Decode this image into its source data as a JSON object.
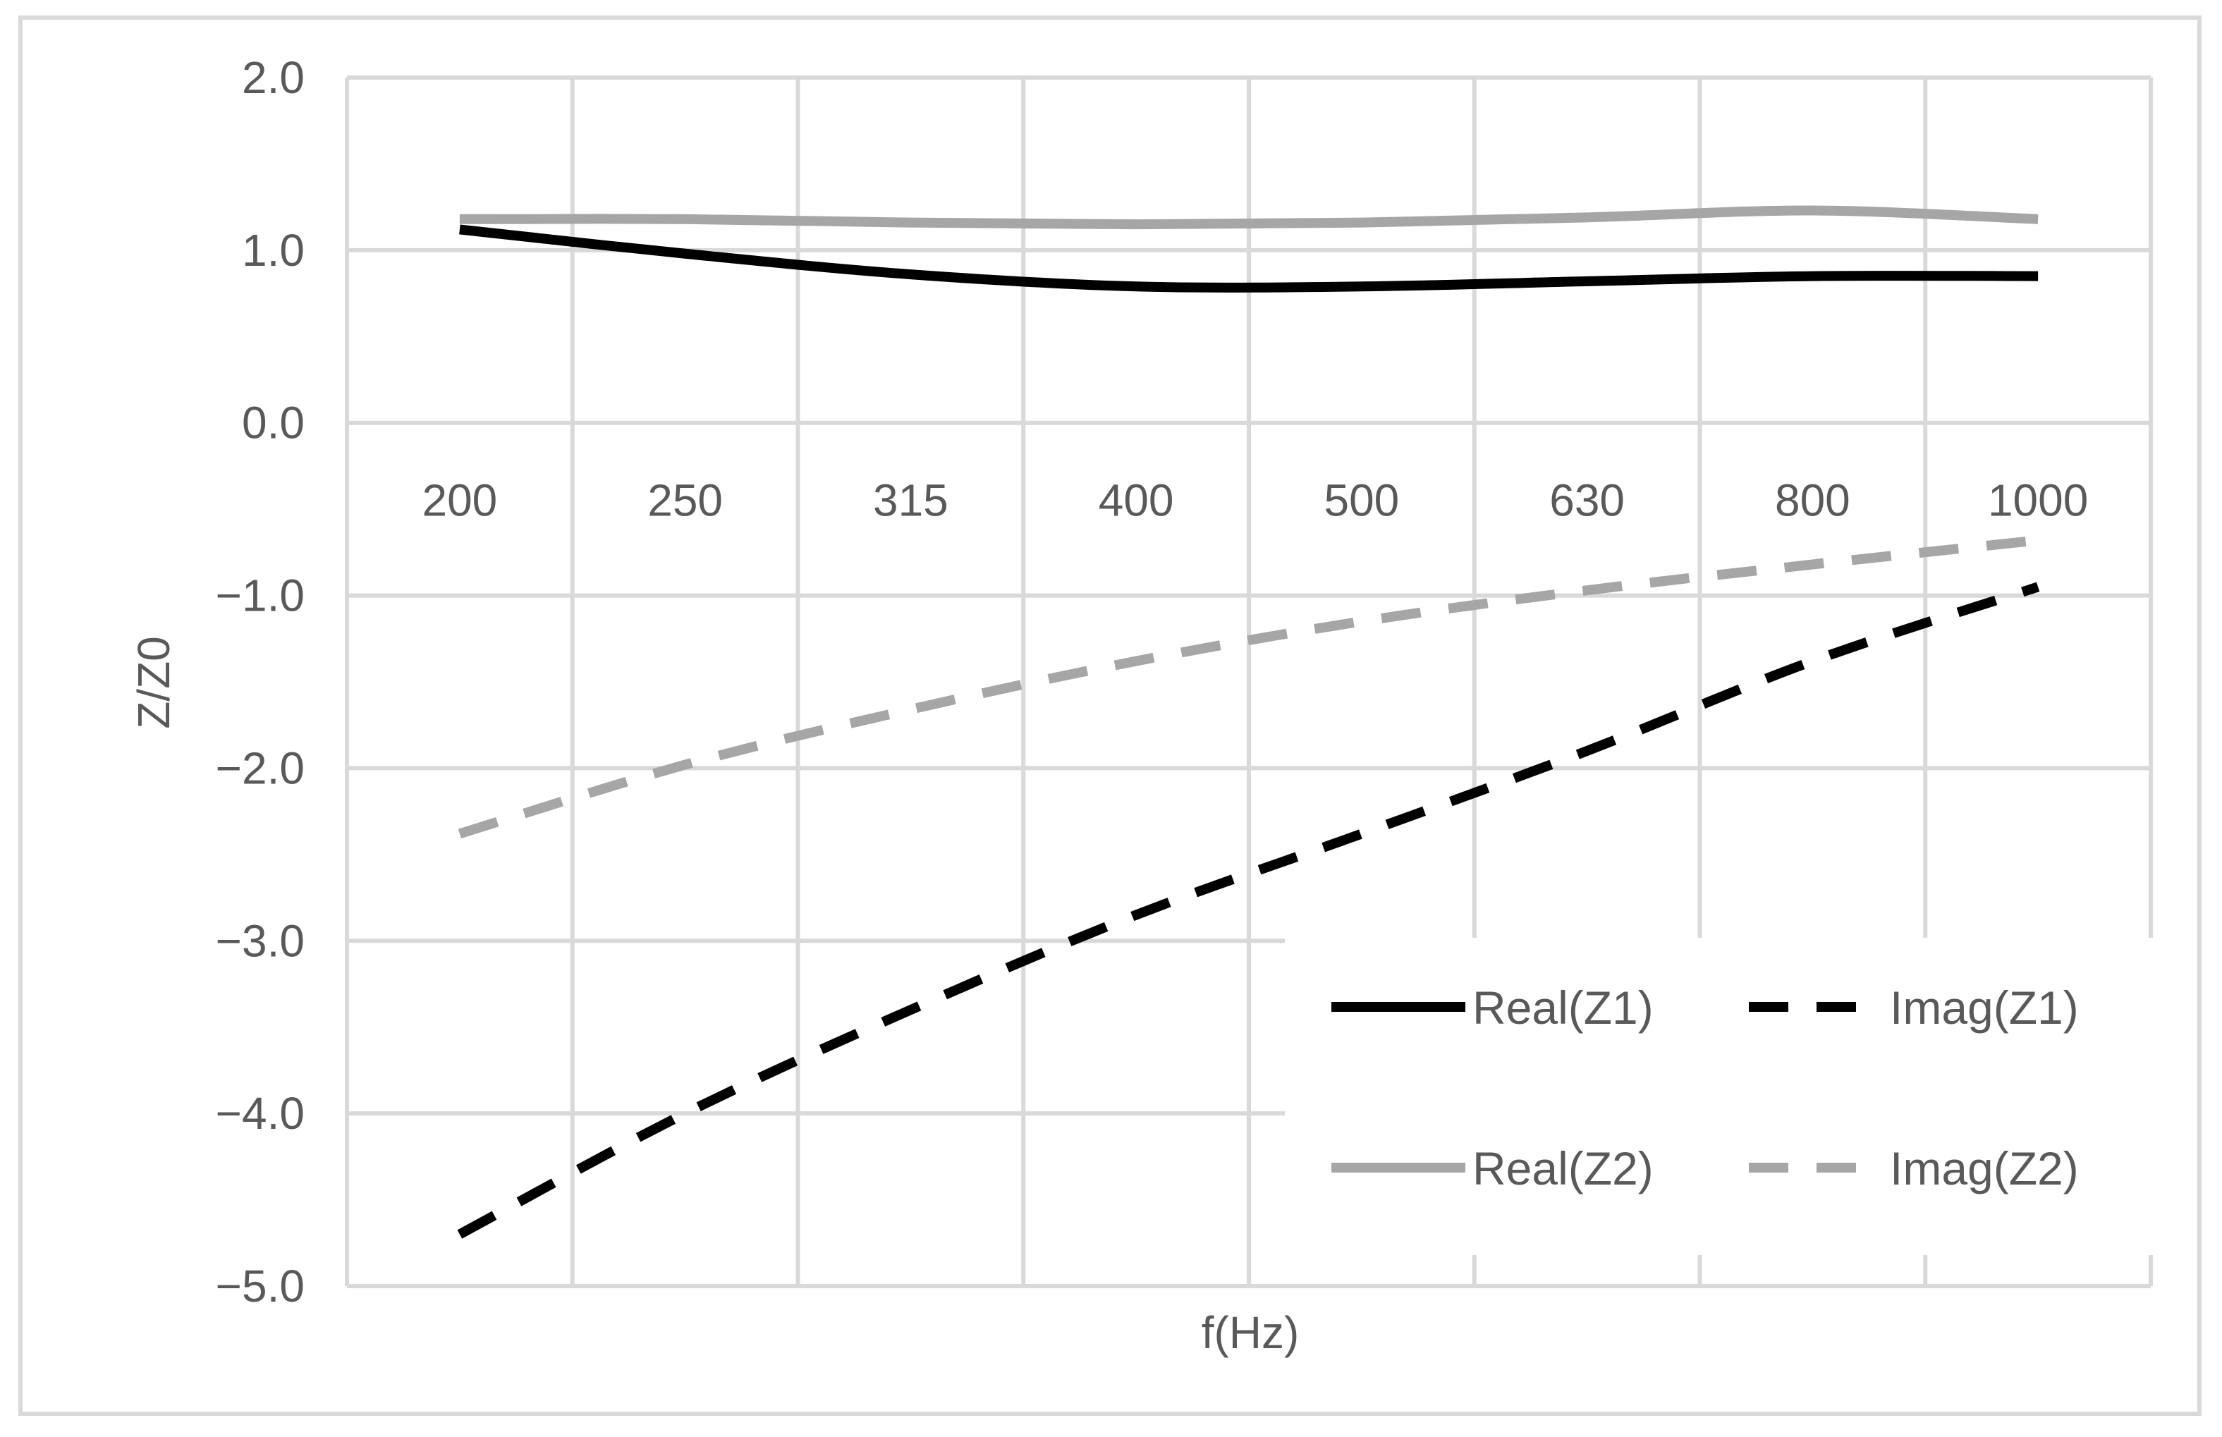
{
  "chart_data": {
    "type": "line",
    "title": "",
    "xlabel": "f(Hz)",
    "ylabel": "Z/Z0",
    "categories": [
      "200",
      "250",
      "315",
      "400",
      "500",
      "630",
      "800",
      "1000"
    ],
    "ylim": [
      -5.0,
      2.0
    ],
    "yticks": [
      2.0,
      1.0,
      0.0,
      -1.0,
      -2.0,
      -3.0,
      -4.0,
      -5.0
    ],
    "ytick_labels": [
      "2.0",
      "1.0",
      "0.0",
      "−1.0",
      "−2.0",
      "−3.0",
      "−4.0",
      "−5.0"
    ],
    "grid": true,
    "legend_position": "bottom-right",
    "series": [
      {
        "name": "Real(Z1)",
        "values": [
          1.12,
          0.98,
          0.86,
          0.79,
          0.79,
          0.82,
          0.85,
          0.85
        ],
        "color": "#000000",
        "dash": "solid"
      },
      {
        "name": "Imag(Z1)",
        "values": [
          -4.7,
          -4.0,
          -3.4,
          -2.85,
          -2.38,
          -1.9,
          -1.38,
          -0.95
        ],
        "color": "#000000",
        "dash": "dashed"
      },
      {
        "name": "Real(Z2)",
        "values": [
          1.18,
          1.18,
          1.16,
          1.15,
          1.16,
          1.19,
          1.23,
          1.18
        ],
        "color": "#a6a6a6",
        "dash": "solid"
      },
      {
        "name": "Imag(Z2)",
        "values": [
          -2.38,
          -1.98,
          -1.66,
          -1.38,
          -1.15,
          -0.97,
          -0.82,
          -0.68
        ],
        "color": "#a6a6a6",
        "dash": "dashed"
      }
    ]
  }
}
